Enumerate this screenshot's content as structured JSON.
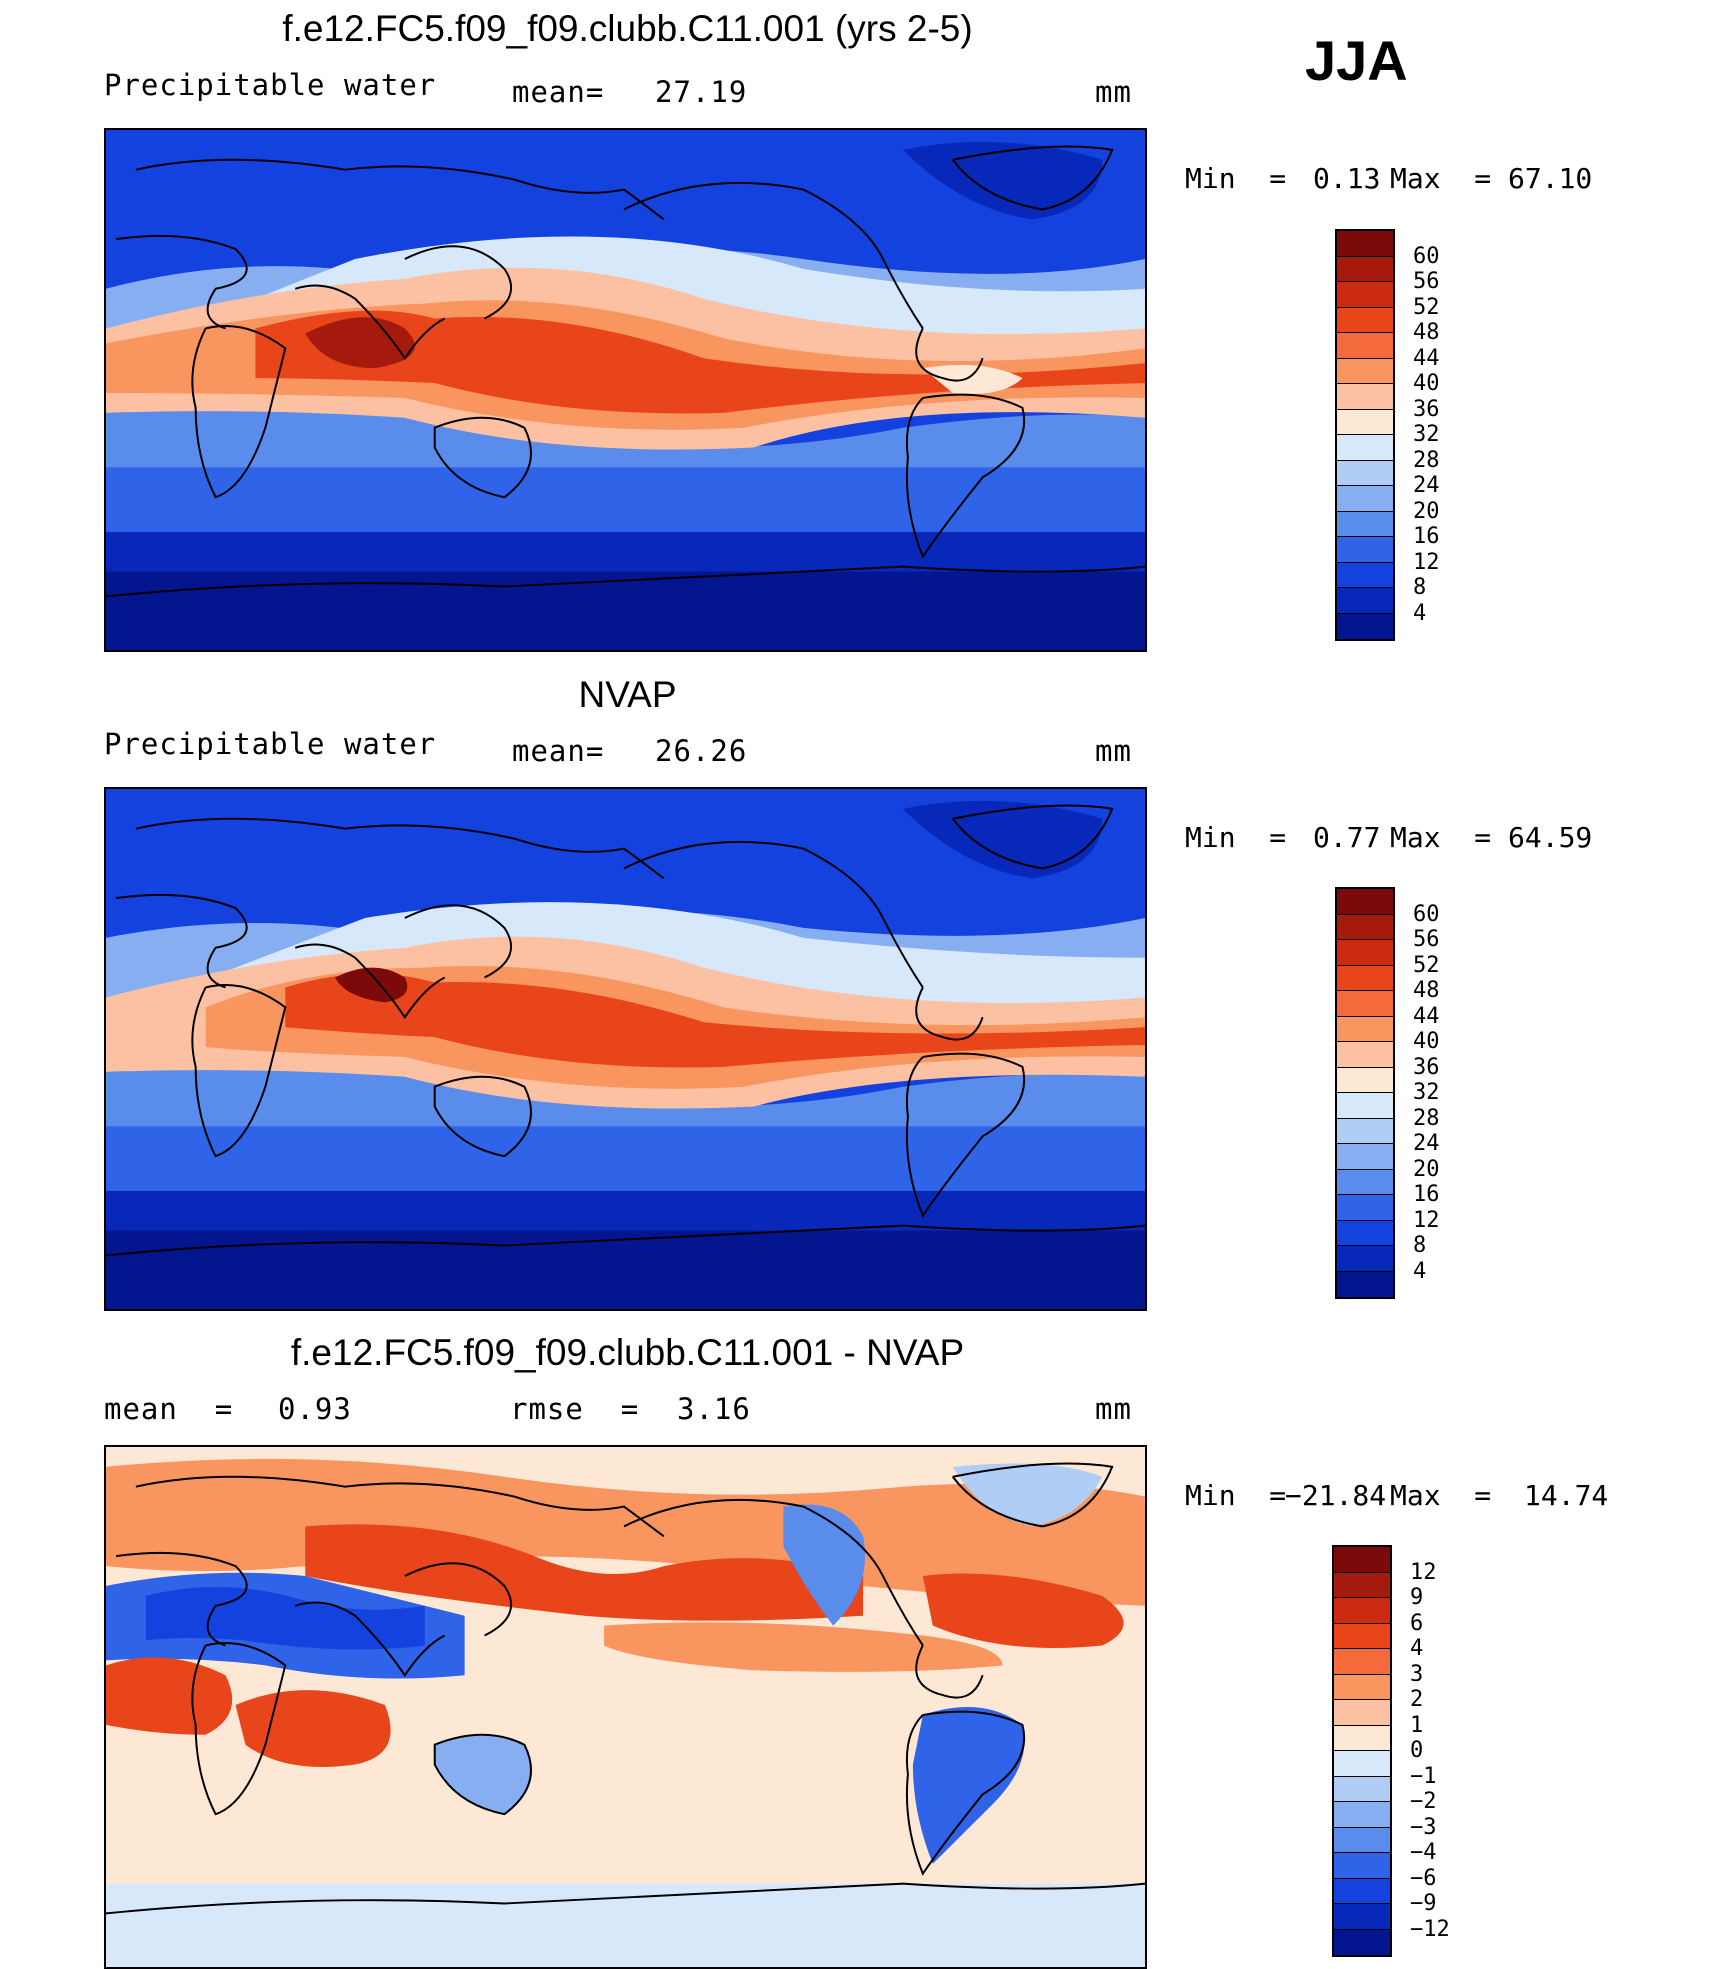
{
  "season": "JJA",
  "panels": [
    {
      "title": "f.e12.FC5.f09_f09.clubb.C11.001 (yrs 2-5)",
      "variable": "Precipitable water",
      "stat1_label": "mean=",
      "stat1_value": "27.19",
      "units": "mm",
      "min_label": "Min  =",
      "min_value": "0.13",
      "max_label": "Max  =",
      "max_value": "67.10",
      "colorbar": {
        "labels": [
          "60",
          "56",
          "52",
          "48",
          "44",
          "40",
          "36",
          "32",
          "28",
          "24",
          "20",
          "16",
          "12",
          "8",
          "4"
        ],
        "colors": [
          "#7d0a0a",
          "#a6190d",
          "#cc2a10",
          "#e8461a",
          "#f46a3a",
          "#f9955f",
          "#fcc0a2",
          "#fde8d6",
          "#d8e8fb",
          "#b0cdf6",
          "#86aef1",
          "#5a8cec",
          "#2f63e8",
          "#1442df",
          "#0728b8",
          "#041590"
        ]
      }
    },
    {
      "title": "NVAP",
      "variable": "Precipitable water",
      "stat1_label": "mean=",
      "stat1_value": "26.26",
      "units": "mm",
      "min_label": "Min  =",
      "min_value": "0.77",
      "max_label": "Max  =",
      "max_value": "64.59",
      "colorbar": {
        "labels": [
          "60",
          "56",
          "52",
          "48",
          "44",
          "40",
          "36",
          "32",
          "28",
          "24",
          "20",
          "16",
          "12",
          "8",
          "4"
        ],
        "colors": [
          "#7d0a0a",
          "#a6190d",
          "#cc2a10",
          "#e8461a",
          "#f46a3a",
          "#f9955f",
          "#fcc0a2",
          "#fde8d6",
          "#d8e8fb",
          "#b0cdf6",
          "#86aef1",
          "#5a8cec",
          "#2f63e8",
          "#1442df",
          "#0728b8",
          "#041590"
        ]
      }
    },
    {
      "title": "f.e12.FC5.f09_f09.clubb.C11.001 - NVAP",
      "variable": "mean  =",
      "stat1_label": "",
      "stat1_value": "0.93",
      "stat2_label": "rmse  =",
      "stat2_value": "3.16",
      "units": "mm",
      "min_label": "Min  =",
      "min_value": "−21.84",
      "max_label": "Max  =",
      "max_value": "14.74",
      "colorbar": {
        "labels": [
          "12",
          "9",
          "6",
          "4",
          "3",
          "2",
          "1",
          "0",
          "−1",
          "−2",
          "−3",
          "−4",
          "−6",
          "−9",
          "−12"
        ],
        "colors": [
          "#7d0a0a",
          "#a6190d",
          "#cc2a10",
          "#e8461a",
          "#f46a3a",
          "#f9955f",
          "#fcc0a2",
          "#fde8d6",
          "#d8e8fb",
          "#b0cdf6",
          "#86aef1",
          "#5a8cec",
          "#2f63e8",
          "#1442df",
          "#0728b8",
          "#041590"
        ]
      }
    }
  ],
  "map_colors": {
    "deep": "#041590",
    "blue_dark": "#1442df",
    "blue": "#2f63e8",
    "blue_mid": "#5a8cec",
    "blue_light": "#86aef1",
    "blue_pale": "#d8e8fb",
    "cream": "#fde8d6",
    "orange_pale": "#fcc0a2",
    "orange": "#f9955f",
    "red_orange": "#e8461a",
    "red": "#cc2a10",
    "dark_red": "#7d0a0a"
  }
}
